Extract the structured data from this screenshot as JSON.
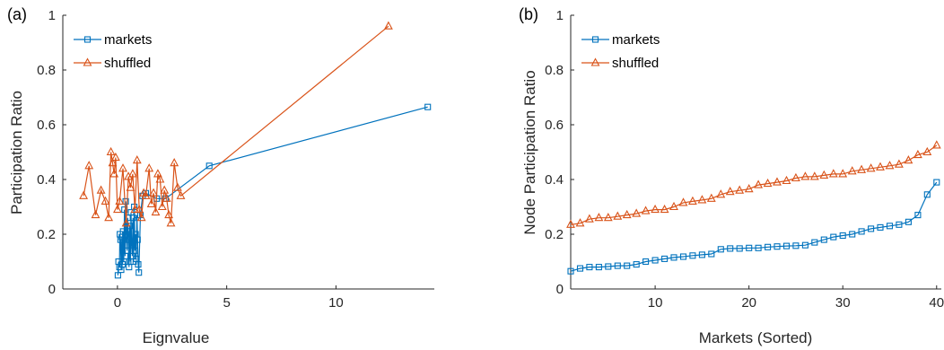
{
  "colors": {
    "markets": "#0072BD",
    "shuffled": "#D95319",
    "axis": "#262626"
  },
  "chart_data": [
    {
      "panel_label": "(a)",
      "type": "line",
      "xlabel": "Eignvalue",
      "ylabel": "Participation Ratio",
      "xlim": [
        -2.5,
        14.5
      ],
      "ylim": [
        0,
        1
      ],
      "xticks": [
        0,
        5,
        10
      ],
      "xtick_labels": [
        "0",
        "5",
        "10"
      ],
      "yticks": [
        0,
        0.2,
        0.4,
        0.6,
        0.8,
        1
      ],
      "ytick_labels": [
        "0",
        "0.2",
        "0.4",
        "0.6",
        "0.8",
        "1"
      ],
      "grid": false,
      "legend_position": "top-left",
      "series": [
        {
          "name": "markets",
          "marker": "square",
          "color": "#0072BD",
          "x": [
            0.02,
            0.05,
            0.09,
            0.11,
            0.14,
            0.17,
            0.2,
            0.23,
            0.26,
            0.29,
            0.32,
            0.35,
            0.38,
            0.41,
            0.44,
            0.47,
            0.5,
            0.53,
            0.56,
            0.59,
            0.62,
            0.65,
            0.68,
            0.71,
            0.74,
            0.77,
            0.8,
            0.83,
            0.86,
            0.89,
            0.92,
            0.95,
            0.98,
            1.05,
            1.15,
            1.3,
            1.8,
            2.2,
            4.2,
            14.2
          ],
          "y": [
            0.05,
            0.1,
            0.08,
            0.2,
            0.18,
            0.07,
            0.19,
            0.09,
            0.21,
            0.1,
            0.29,
            0.12,
            0.32,
            0.2,
            0.14,
            0.26,
            0.18,
            0.08,
            0.23,
            0.1,
            0.28,
            0.16,
            0.12,
            0.26,
            0.1,
            0.3,
            0.14,
            0.2,
            0.11,
            0.27,
            0.18,
            0.09,
            0.06,
            0.27,
            0.34,
            0.35,
            0.33,
            0.33,
            0.45,
            0.665
          ]
        },
        {
          "name": "shuffled",
          "marker": "triangle",
          "color": "#D95319",
          "x": [
            -1.55,
            -1.3,
            -1.0,
            -0.75,
            -0.55,
            -0.4,
            -0.3,
            -0.22,
            -0.15,
            -0.08,
            0.0,
            0.1,
            0.25,
            0.4,
            0.5,
            0.6,
            0.7,
            0.8,
            0.9,
            1.0,
            1.1,
            1.2,
            1.3,
            1.45,
            1.55,
            1.65,
            1.75,
            1.85,
            1.95,
            2.05,
            2.15,
            2.25,
            2.35,
            2.45,
            2.6,
            2.75,
            2.9,
            12.4
          ],
          "y": [
            0.34,
            0.45,
            0.27,
            0.36,
            0.32,
            0.26,
            0.5,
            0.46,
            0.42,
            0.48,
            0.29,
            0.32,
            0.44,
            0.24,
            0.41,
            0.37,
            0.42,
            0.29,
            0.47,
            0.29,
            0.26,
            0.35,
            0.34,
            0.44,
            0.31,
            0.35,
            0.28,
            0.42,
            0.4,
            0.3,
            0.36,
            0.33,
            0.27,
            0.24,
            0.46,
            0.37,
            0.34,
            0.96
          ]
        }
      ]
    },
    {
      "panel_label": "(b)",
      "type": "line",
      "xlabel": "Markets (Sorted)",
      "ylabel": "Node Participation Ratio",
      "xlim": [
        1,
        40.5
      ],
      "ylim": [
        0,
        1
      ],
      "xticks": [
        10,
        20,
        30,
        40
      ],
      "xtick_labels": [
        "10",
        "20",
        "30",
        "40"
      ],
      "yticks": [
        0,
        0.2,
        0.4,
        0.6,
        0.8,
        1
      ],
      "ytick_labels": [
        "0",
        "0.2",
        "0.4",
        "0.6",
        "0.8",
        "1"
      ],
      "grid": false,
      "legend_position": "top-left",
      "series": [
        {
          "name": "markets",
          "marker": "square",
          "color": "#0072BD",
          "x": [
            1,
            2,
            3,
            4,
            5,
            6,
            7,
            8,
            9,
            10,
            11,
            12,
            13,
            14,
            15,
            16,
            17,
            18,
            19,
            20,
            21,
            22,
            23,
            24,
            25,
            26,
            27,
            28,
            29,
            30,
            31,
            32,
            33,
            34,
            35,
            36,
            37,
            38,
            39,
            40
          ],
          "y": [
            0.065,
            0.075,
            0.08,
            0.08,
            0.082,
            0.085,
            0.085,
            0.09,
            0.1,
            0.105,
            0.11,
            0.115,
            0.118,
            0.122,
            0.125,
            0.128,
            0.145,
            0.148,
            0.148,
            0.15,
            0.15,
            0.153,
            0.155,
            0.157,
            0.158,
            0.16,
            0.17,
            0.18,
            0.19,
            0.195,
            0.2,
            0.21,
            0.22,
            0.225,
            0.23,
            0.235,
            0.245,
            0.27,
            0.345,
            0.39
          ]
        },
        {
          "name": "shuffled",
          "marker": "triangle",
          "color": "#D95319",
          "x": [
            1,
            2,
            3,
            4,
            5,
            6,
            7,
            8,
            9,
            10,
            11,
            12,
            13,
            14,
            15,
            16,
            17,
            18,
            19,
            20,
            21,
            22,
            23,
            24,
            25,
            26,
            27,
            28,
            29,
            30,
            31,
            32,
            33,
            34,
            35,
            36,
            37,
            38,
            39,
            40
          ],
          "y": [
            0.235,
            0.24,
            0.255,
            0.26,
            0.26,
            0.265,
            0.27,
            0.275,
            0.285,
            0.29,
            0.29,
            0.3,
            0.315,
            0.32,
            0.325,
            0.33,
            0.345,
            0.355,
            0.36,
            0.365,
            0.38,
            0.385,
            0.39,
            0.395,
            0.405,
            0.41,
            0.41,
            0.415,
            0.42,
            0.42,
            0.43,
            0.435,
            0.44,
            0.445,
            0.45,
            0.455,
            0.47,
            0.49,
            0.5,
            0.525
          ]
        }
      ]
    }
  ]
}
